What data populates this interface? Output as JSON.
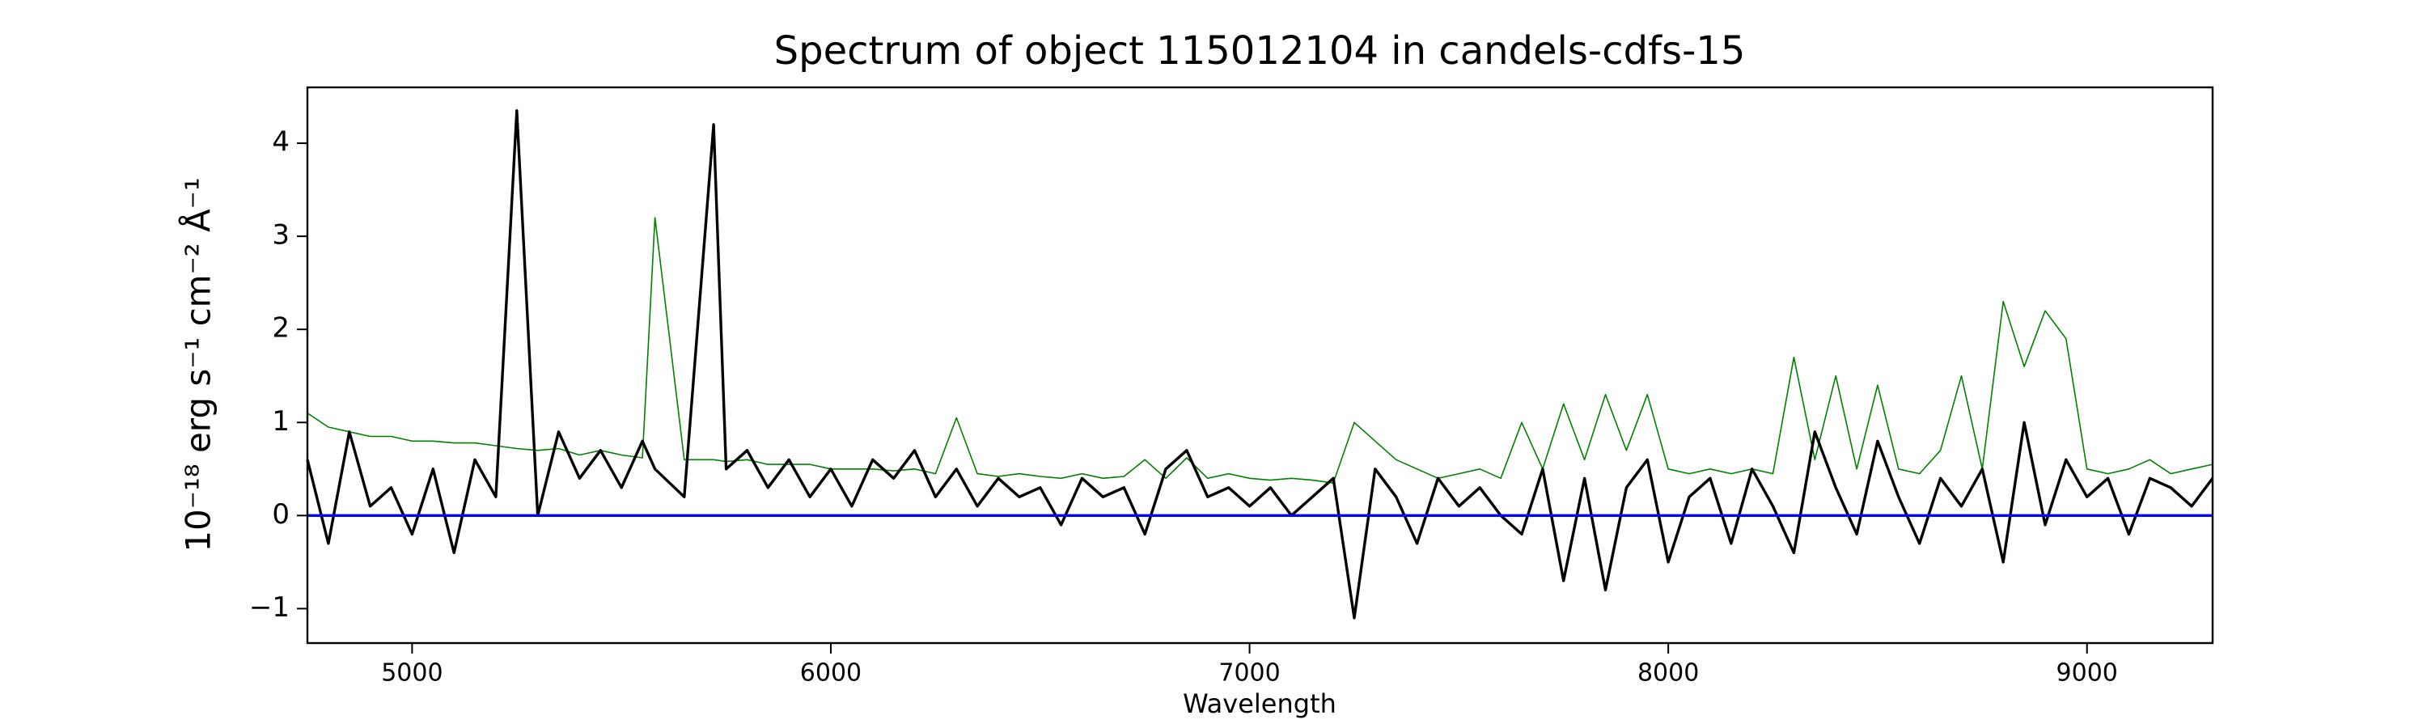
{
  "chart_data": {
    "type": "line",
    "title": "Spectrum of object 115012104 in candels-cdfs-15",
    "x_label": "Wavelength",
    "y_label": "10⁻¹⁸ erg s⁻¹ cm⁻² Å⁻¹",
    "x": [
      4750,
      4800,
      4850,
      4900,
      4950,
      5000,
      5050,
      5100,
      5150,
      5200,
      5250,
      5300,
      5350,
      5400,
      5450,
      5500,
      5550,
      5580,
      5650,
      5720,
      5750,
      5800,
      5850,
      5900,
      5950,
      6000,
      6050,
      6100,
      6150,
      6200,
      6250,
      6300,
      6350,
      6400,
      6450,
      6500,
      6550,
      6600,
      6650,
      6700,
      6750,
      6800,
      6850,
      6900,
      6950,
      7000,
      7050,
      7100,
      7150,
      7200,
      7250,
      7300,
      7350,
      7400,
      7450,
      7500,
      7550,
      7600,
      7650,
      7700,
      7750,
      7800,
      7850,
      7900,
      7950,
      8000,
      8050,
      8100,
      8150,
      8200,
      8250,
      8300,
      8350,
      8400,
      8450,
      8500,
      8550,
      8600,
      8650,
      8700,
      8750,
      8800,
      8850,
      8900,
      8950,
      9000,
      9050,
      9100,
      9150,
      9200,
      9250,
      9300
    ],
    "series": [
      {
        "color": "green",
        "values": [
          1.1,
          0.95,
          0.9,
          0.85,
          0.85,
          0.8,
          0.8,
          0.78,
          0.78,
          0.75,
          0.72,
          0.7,
          0.72,
          0.65,
          0.7,
          0.65,
          0.62,
          3.2,
          0.6,
          0.6,
          0.58,
          0.6,
          0.55,
          0.55,
          0.55,
          0.5,
          0.5,
          0.5,
          0.48,
          0.5,
          0.45,
          1.05,
          0.45,
          0.42,
          0.45,
          0.42,
          0.4,
          0.45,
          0.4,
          0.42,
          0.6,
          0.4,
          0.62,
          0.4,
          0.45,
          0.4,
          0.38,
          0.4,
          0.38,
          0.35,
          1.0,
          0.8,
          0.6,
          0.5,
          0.4,
          0.45,
          0.5,
          0.4,
          1.0,
          0.5,
          1.2,
          0.6,
          1.3,
          0.7,
          1.3,
          0.5,
          0.45,
          0.5,
          0.45,
          0.5,
          0.45,
          1.7,
          0.6,
          1.5,
          0.5,
          1.4,
          0.5,
          0.45,
          0.7,
          1.5,
          0.5,
          2.3,
          1.6,
          2.2,
          1.9,
          0.5,
          0.45,
          0.5,
          0.6,
          0.45,
          0.5,
          0.55
        ]
      },
      {
        "color": "black",
        "values": [
          0.6,
          -0.3,
          0.9,
          0.1,
          0.3,
          -0.2,
          0.5,
          -0.4,
          0.6,
          0.2,
          4.35,
          0.0,
          0.9,
          0.4,
          0.7,
          0.3,
          0.8,
          0.5,
          0.2,
          4.2,
          0.5,
          0.7,
          0.3,
          0.6,
          0.2,
          0.5,
          0.1,
          0.6,
          0.4,
          0.7,
          0.2,
          0.5,
          0.1,
          0.4,
          0.2,
          0.3,
          -0.1,
          0.4,
          0.2,
          0.3,
          -0.2,
          0.5,
          0.7,
          0.2,
          0.3,
          0.1,
          0.3,
          0.0,
          0.2,
          0.4,
          -1.1,
          0.5,
          0.2,
          -0.3,
          0.4,
          0.1,
          0.3,
          0.0,
          -0.2,
          0.5,
          -0.7,
          0.4,
          -0.8,
          0.3,
          0.6,
          -0.5,
          0.2,
          0.4,
          -0.3,
          0.5,
          0.1,
          -0.4,
          0.9,
          0.3,
          -0.2,
          0.8,
          0.2,
          -0.3,
          0.4,
          0.1,
          0.5,
          -0.5,
          1.0,
          -0.1,
          0.6,
          0.2,
          0.4,
          -0.2,
          0.4,
          0.3,
          0.1,
          0.4
        ]
      },
      {
        "color": "blue",
        "x": [
          4750,
          9300
        ],
        "values": [
          0,
          0
        ]
      }
    ],
    "xlim": [
      4750,
      9300
    ],
    "ylim": [
      -1.37,
      4.6
    ],
    "xticks": [
      5000,
      6000,
      7000,
      8000,
      9000
    ],
    "yticks": [
      {
        "value": -1,
        "label": "−1"
      },
      0,
      1,
      2,
      3,
      4
    ],
    "grid": false
  }
}
